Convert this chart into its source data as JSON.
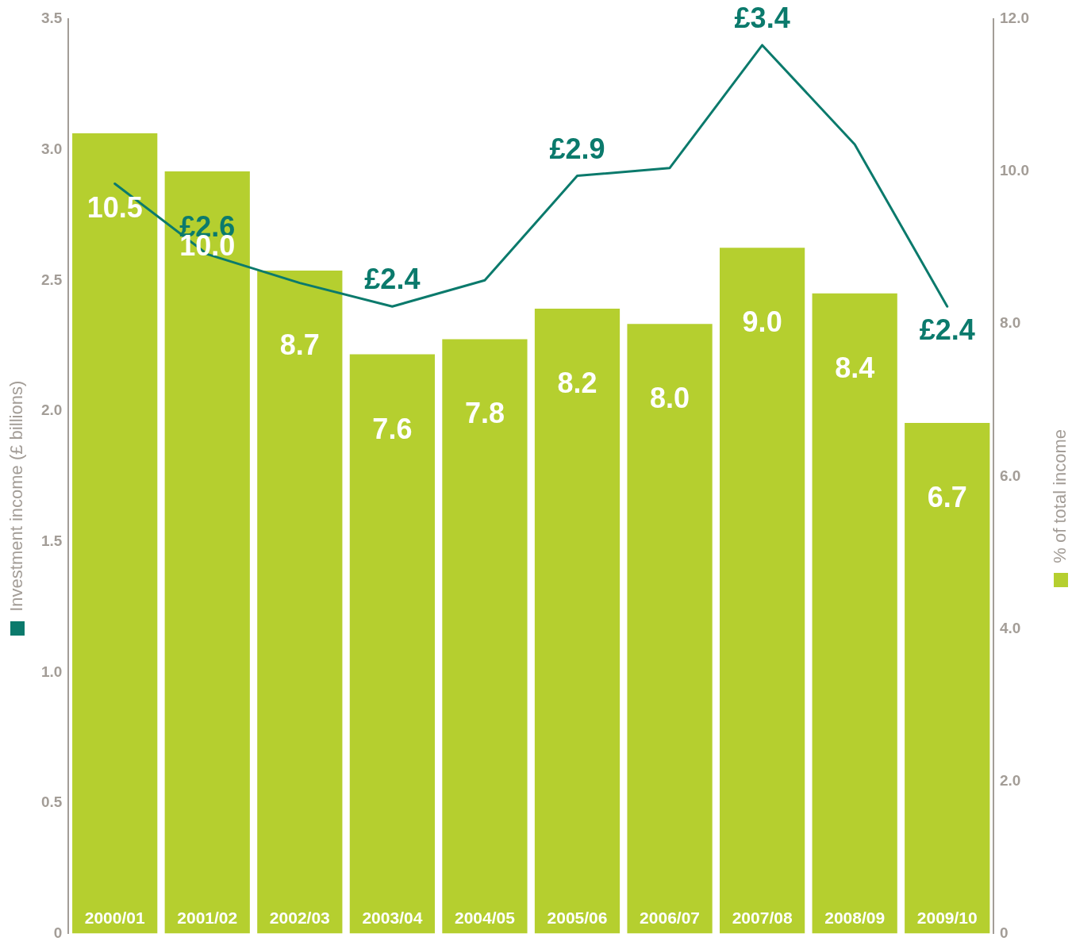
{
  "chart_data": {
    "type": "bar",
    "ylabel": "Investment income (£ billions)",
    "y2label": "% of total income",
    "categories": [
      "2000/01",
      "2001/02",
      "2002/03",
      "2003/04",
      "2004/05",
      "2005/06",
      "2006/07",
      "2007/08",
      "2008/09",
      "2009/10"
    ],
    "series": [
      {
        "type": "line",
        "axis": "y",
        "color": "#0b7a6c",
        "values": [
          2.87,
          2.6,
          2.49,
          2.4,
          2.5,
          2.9,
          2.93,
          3.4,
          3.02,
          2.4
        ],
        "value_labels": [
          null,
          "£2.6",
          null,
          "£2.4",
          null,
          "£2.9",
          null,
          "£3.4",
          null,
          "£2.4"
        ]
      },
      {
        "axis": "y2",
        "color": "#b5cf2f",
        "values": [
          10.5,
          10.0,
          8.7,
          7.6,
          7.8,
          8.2,
          8.0,
          9.0,
          8.4,
          6.7
        ],
        "value_labels": [
          "10.5",
          "10.0",
          "8.7",
          "7.6",
          "7.8",
          "8.2",
          "8.0",
          "9.0",
          "8.4",
          "6.7"
        ]
      }
    ],
    "ylim": [
      0,
      3.5
    ],
    "yticks": [
      0,
      0.5,
      {
        "value": 1,
        "label": "1.0"
      },
      1.5,
      {
        "value": 2,
        "label": "2.0"
      },
      2.5,
      {
        "value": 3,
        "label": "3.0"
      },
      3.5
    ],
    "y2lim": [
      0,
      12
    ],
    "y2ticks": [
      0,
      {
        "value": 2,
        "label": "2.0"
      },
      {
        "value": 4,
        "label": "4.0"
      },
      {
        "value": 6,
        "label": "6.0"
      },
      {
        "value": 8,
        "label": "8.0"
      },
      {
        "value": 10,
        "label": "10.0"
      },
      {
        "value": 12,
        "label": "12.0"
      }
    ],
    "grid": false,
    "legend": false,
    "marker": "none",
    "line_style": "solid"
  }
}
